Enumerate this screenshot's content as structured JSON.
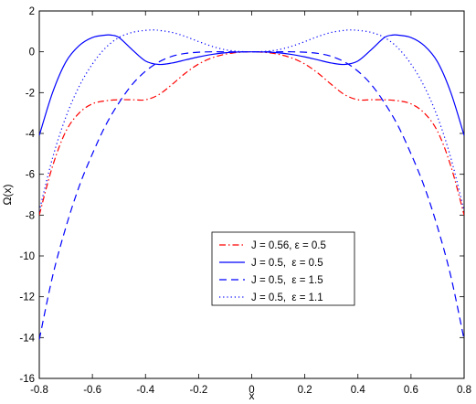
{
  "chart_data": {
    "type": "line",
    "xlabel": "x",
    "ylabel": "Ω(x)",
    "xlim": [
      -0.8,
      0.8
    ],
    "ylim": [
      -16,
      2
    ],
    "xticks": [
      -0.8,
      -0.6,
      -0.4,
      -0.2,
      0,
      0.2,
      0.4,
      0.6,
      0.8
    ],
    "yticks": [
      -16,
      -14,
      -12,
      -10,
      -8,
      -6,
      -4,
      -2,
      0,
      2
    ],
    "xtick_labels": [
      "-0.8",
      "-0.6",
      "-0.4",
      "-0.2",
      "0",
      "0.2",
      "0.4",
      "0.6",
      "0.8"
    ],
    "ytick_labels": [
      "-16",
      "-14",
      "-12",
      "-10",
      "-8",
      "-6",
      "-4",
      "-2",
      "0",
      "2"
    ],
    "grid": false,
    "legend_position": "center-lower",
    "series": [
      {
        "name": "J = 0.56, ε = 0.5",
        "color": "#ff0000",
        "dash": "dash-dot",
        "x": [
          -0.8,
          -0.75,
          -0.7,
          -0.65,
          -0.6,
          -0.55,
          -0.5,
          -0.45,
          -0.4,
          -0.35,
          -0.3,
          -0.25,
          -0.2,
          -0.15,
          -0.1,
          -0.05,
          0,
          0.05,
          0.1,
          0.15,
          0.2,
          0.25,
          0.3,
          0.35,
          0.4,
          0.45,
          0.5,
          0.55,
          0.6,
          0.65,
          0.7,
          0.75,
          0.8
        ],
        "y": [
          -8.0,
          -5.6,
          -3.9,
          -3.0,
          -2.55,
          -2.4,
          -2.35,
          -2.35,
          -2.35,
          -2.1,
          -1.6,
          -1.05,
          -0.6,
          -0.3,
          -0.12,
          -0.03,
          0,
          -0.03,
          -0.12,
          -0.3,
          -0.6,
          -1.05,
          -1.6,
          -2.1,
          -2.35,
          -2.35,
          -2.35,
          -2.4,
          -2.55,
          -3.0,
          -3.9,
          -5.6,
          -8.0
        ]
      },
      {
        "name": "J = 0.5,  ε = 0.5",
        "color": "#0000ff",
        "dash": "solid",
        "x": [
          -0.8,
          -0.75,
          -0.7,
          -0.65,
          -0.6,
          -0.55,
          -0.53,
          -0.5,
          -0.45,
          -0.4,
          -0.35,
          -0.3,
          -0.25,
          -0.2,
          -0.15,
          -0.1,
          -0.05,
          0,
          0.05,
          0.1,
          0.15,
          0.2,
          0.25,
          0.3,
          0.35,
          0.4,
          0.45,
          0.5,
          0.53,
          0.55,
          0.6,
          0.65,
          0.7,
          0.75,
          0.8
        ],
        "y": [
          -4.1,
          -2.0,
          -0.5,
          0.3,
          0.7,
          0.82,
          0.82,
          0.7,
          0.1,
          -0.45,
          -0.62,
          -0.55,
          -0.4,
          -0.25,
          -0.13,
          -0.05,
          -0.01,
          0,
          -0.01,
          -0.05,
          -0.13,
          -0.25,
          -0.4,
          -0.55,
          -0.62,
          -0.45,
          0.1,
          0.7,
          0.82,
          0.82,
          0.7,
          0.3,
          -0.5,
          -2.0,
          -4.1
        ]
      },
      {
        "name": "J = 0.5,  ε = 1.5",
        "color": "#0000ff",
        "dash": "dashed",
        "x": [
          -0.8,
          -0.75,
          -0.7,
          -0.65,
          -0.6,
          -0.55,
          -0.5,
          -0.45,
          -0.4,
          -0.35,
          -0.3,
          -0.25,
          -0.2,
          -0.15,
          -0.1,
          -0.05,
          0,
          0.05,
          0.1,
          0.15,
          0.2,
          0.25,
          0.3,
          0.35,
          0.4,
          0.45,
          0.5,
          0.55,
          0.6,
          0.65,
          0.7,
          0.75,
          0.8
        ],
        "y": [
          -14.1,
          -11.0,
          -8.6,
          -6.6,
          -5.0,
          -3.6,
          -2.5,
          -1.6,
          -0.95,
          -0.5,
          -0.22,
          -0.08,
          -0.02,
          0,
          0,
          0,
          0,
          0,
          0,
          0,
          -0.02,
          -0.08,
          -0.22,
          -0.5,
          -0.95,
          -1.6,
          -2.5,
          -3.6,
          -5.0,
          -6.6,
          -8.6,
          -11.0,
          -14.1
        ]
      },
      {
        "name": "J = 0.5,  ε = 1.1",
        "color": "#0000ff",
        "dash": "dotted",
        "x": [
          -0.8,
          -0.75,
          -0.7,
          -0.65,
          -0.6,
          -0.55,
          -0.5,
          -0.45,
          -0.4,
          -0.37,
          -0.35,
          -0.3,
          -0.25,
          -0.2,
          -0.15,
          -0.1,
          -0.05,
          0,
          0.05,
          0.1,
          0.15,
          0.2,
          0.25,
          0.3,
          0.35,
          0.37,
          0.4,
          0.45,
          0.5,
          0.55,
          0.6,
          0.65,
          0.7,
          0.75,
          0.8
        ],
        "y": [
          -7.8,
          -5.2,
          -3.2,
          -1.7,
          -0.6,
          0.2,
          0.7,
          0.95,
          1.05,
          1.07,
          1.05,
          0.95,
          0.75,
          0.5,
          0.27,
          0.1,
          0.02,
          0,
          0.02,
          0.1,
          0.27,
          0.5,
          0.75,
          0.95,
          1.05,
          1.07,
          1.05,
          0.95,
          0.7,
          0.2,
          -0.6,
          -1.7,
          -3.2,
          -5.2,
          -7.8
        ]
      }
    ]
  }
}
